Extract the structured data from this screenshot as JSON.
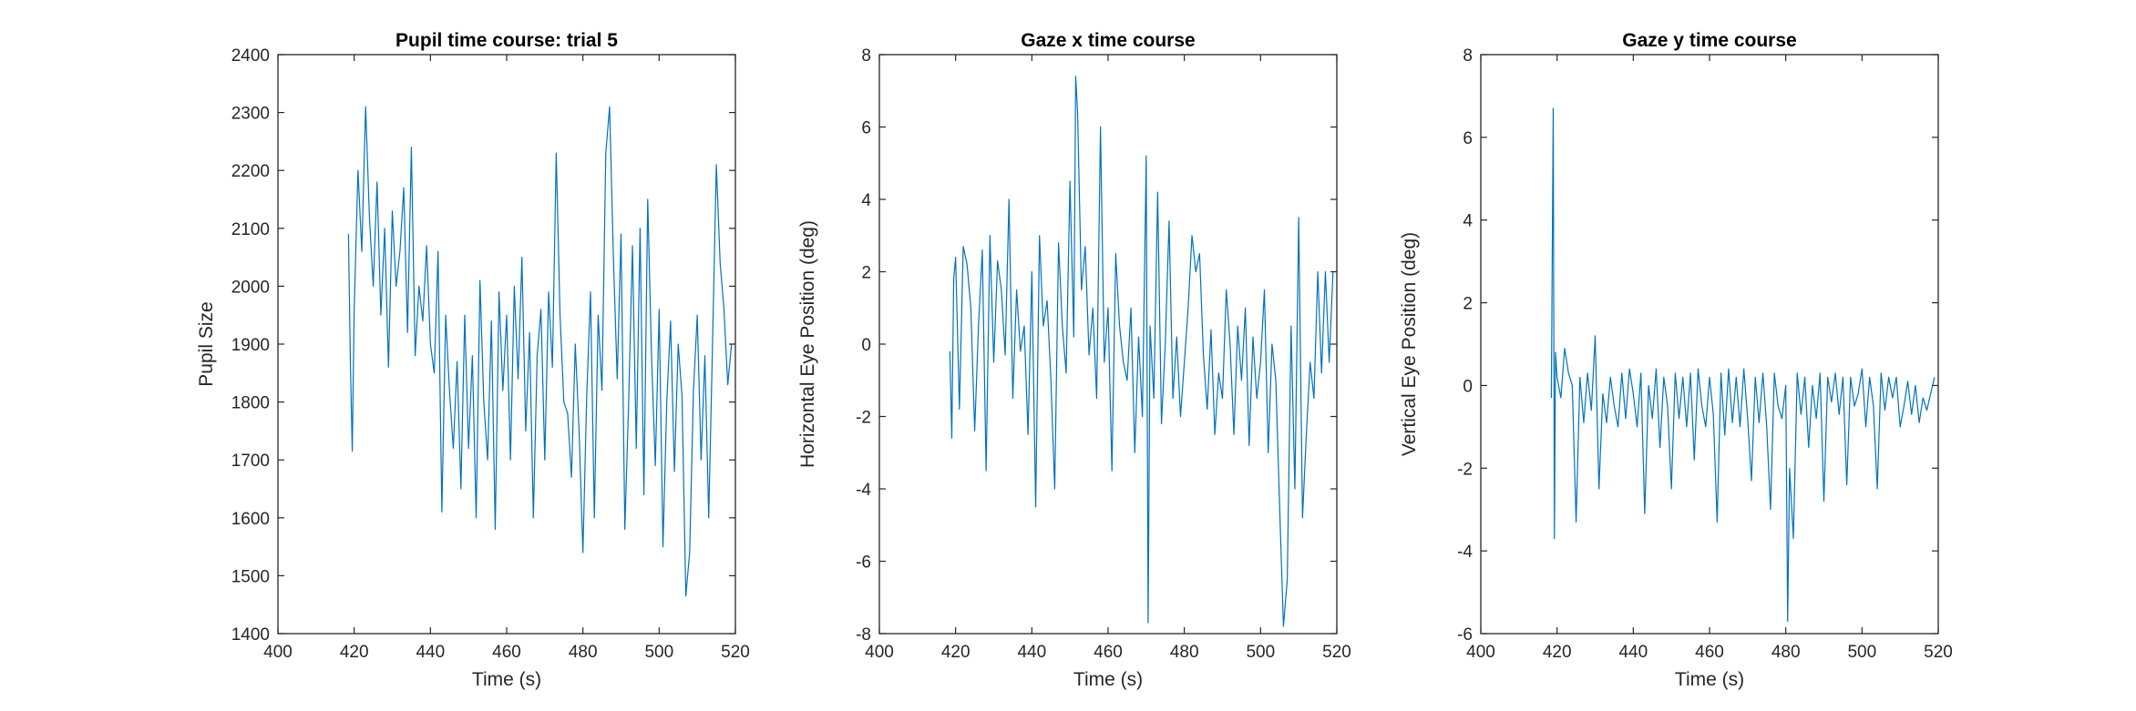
{
  "chart_data": [
    {
      "type": "line",
      "title": "Pupil time course: trial 5",
      "xlabel": "Time (s)",
      "ylabel": "Pupil Size",
      "xlim": [
        400,
        520
      ],
      "ylim": [
        1400,
        2400
      ],
      "xticks": [
        "400",
        "420",
        "440",
        "460",
        "480",
        "500",
        "520"
      ],
      "yticks": [
        "1400",
        "1500",
        "1600",
        "1700",
        "1800",
        "1900",
        "2000",
        "2100",
        "2200",
        "2300",
        "2400"
      ],
      "color": "#0072BD",
      "series": [
        {
          "x": [
            418.5,
            419,
            419.5,
            420,
            421,
            422,
            423,
            424,
            425,
            426,
            427,
            428,
            429,
            430,
            431,
            432,
            433,
            434,
            435,
            436,
            437,
            438,
            439,
            440,
            441,
            442,
            443,
            444,
            445,
            446,
            447,
            448,
            449,
            450,
            451,
            452,
            453,
            454,
            455,
            456,
            457,
            458,
            459,
            460,
            461,
            462,
            463,
            464,
            465,
            466,
            467,
            468,
            469,
            470,
            471,
            472,
            473,
            474,
            475,
            476,
            477,
            478,
            479,
            480,
            481,
            482,
            483,
            484,
            485,
            486,
            487,
            488,
            489,
            490,
            491,
            492,
            493,
            494,
            495,
            496,
            497,
            498,
            499,
            500,
            501,
            502,
            503,
            504,
            505,
            506,
            507,
            508,
            509,
            510,
            511,
            512,
            513,
            514,
            515,
            516,
            517,
            518,
            519
          ],
          "y": [
            2090,
            1870,
            1715,
            1960,
            2200,
            2060,
            2310,
            2120,
            2000,
            2180,
            1950,
            2100,
            1860,
            2130,
            2000,
            2060,
            2170,
            1920,
            2240,
            1880,
            2000,
            1940,
            2070,
            1900,
            1850,
            2060,
            1610,
            1950,
            1820,
            1720,
            1870,
            1650,
            1950,
            1720,
            1880,
            1600,
            2010,
            1800,
            1700,
            1940,
            1580,
            1990,
            1820,
            1950,
            1700,
            2000,
            1840,
            2050,
            1750,
            1920,
            1600,
            1880,
            1960,
            1700,
            1990,
            1860,
            2230,
            1950,
            1800,
            1780,
            1670,
            1900,
            1750,
            1540,
            1810,
            1990,
            1600,
            1950,
            1820,
            2230,
            2310,
            2050,
            1840,
            2090,
            1580,
            1800,
            2070,
            1720,
            2100,
            1640,
            2150,
            1880,
            1690,
            1960,
            1550,
            1800,
            1940,
            1680,
            1900,
            1810,
            1465,
            1540,
            1820,
            1950,
            1700,
            1880,
            1600,
            1900,
            2210,
            2040,
            1960,
            1830,
            1900
          ]
        }
      ]
    },
    {
      "type": "line",
      "title": "Gaze x time course",
      "xlabel": "Time (s)",
      "ylabel": "Horizontal Eye Position (deg)",
      "xlim": [
        400,
        520
      ],
      "ylim": [
        -8,
        8
      ],
      "xticks": [
        "400",
        "420",
        "440",
        "460",
        "480",
        "500",
        "520"
      ],
      "yticks": [
        "-8",
        "-6",
        "-4",
        "-2",
        "0",
        "2",
        "4",
        "6",
        "8"
      ],
      "color": "#0072BD",
      "series": [
        {
          "x": [
            418.5,
            419,
            419.5,
            420,
            421,
            422,
            423,
            424,
            425,
            426,
            427,
            428,
            429,
            430,
            431,
            432,
            433,
            434,
            435,
            436,
            437,
            438,
            439,
            440,
            441,
            442,
            443,
            444,
            445,
            446,
            447,
            448,
            449,
            450,
            451,
            451.5,
            452,
            453,
            454,
            455,
            456,
            457,
            458,
            459,
            460,
            461,
            462,
            463,
            464,
            465,
            466,
            467,
            468,
            469,
            470,
            470.5,
            471,
            472,
            473,
            474,
            475,
            476,
            477,
            478,
            479,
            480,
            481,
            482,
            483,
            484,
            485,
            486,
            487,
            488,
            489,
            490,
            491,
            492,
            493,
            494,
            495,
            496,
            497,
            498,
            499,
            500,
            501,
            502,
            503,
            504,
            505,
            506,
            507,
            508,
            509,
            510,
            511,
            512,
            513,
            514,
            515,
            516,
            517,
            518,
            519
          ],
          "y": [
            -0.2,
            -2.6,
            1.8,
            2.4,
            -1.8,
            2.7,
            2.2,
            1.0,
            -2.4,
            0.5,
            2.6,
            -3.5,
            3.0,
            -0.5,
            2.3,
            1.5,
            -0.3,
            4.0,
            -1.5,
            1.5,
            -0.2,
            0.5,
            -2.5,
            2.0,
            -4.5,
            3.0,
            0.5,
            1.2,
            -1.0,
            -4.0,
            2.8,
            0.5,
            -0.8,
            4.5,
            0.2,
            7.4,
            6.4,
            1.5,
            2.7,
            -0.3,
            1.0,
            -1.5,
            6.0,
            -0.5,
            1.0,
            -3.5,
            2.5,
            0.5,
            -0.5,
            -1.0,
            1.0,
            -3.0,
            0.2,
            -2.0,
            5.2,
            -7.7,
            0.5,
            -1.5,
            4.2,
            -2.2,
            0.0,
            3.4,
            -1.5,
            0.2,
            -2.0,
            -0.5,
            1.0,
            3.0,
            2.0,
            2.5,
            -0.3,
            -1.8,
            0.4,
            -2.5,
            -0.8,
            -1.5,
            1.5,
            0.0,
            -2.5,
            0.5,
            -1.0,
            1.0,
            -2.8,
            0.2,
            -1.5,
            -0.5,
            1.5,
            -3.0,
            0.0,
            -1.0,
            -4.5,
            -7.8,
            -6.5,
            0.5,
            -4.0,
            3.5,
            -4.8,
            -2.5,
            -0.5,
            -1.5,
            2.0,
            -0.8,
            2.0,
            -0.5,
            2.0
          ]
        }
      ]
    },
    {
      "type": "line",
      "title": "Gaze y time course",
      "xlabel": "Time (s)",
      "ylabel": "Vertical Eye Position (deg)",
      "xlim": [
        400,
        520
      ],
      "ylim": [
        -6,
        8
      ],
      "xticks": [
        "400",
        "420",
        "440",
        "460",
        "480",
        "500",
        "520"
      ],
      "yticks": [
        "-6",
        "-4",
        "-2",
        "0",
        "2",
        "4",
        "6",
        "8"
      ],
      "color": "#0072BD",
      "series": [
        {
          "x": [
            418.5,
            419,
            419.3,
            419.6,
            420,
            421,
            422,
            423,
            424,
            425,
            426,
            427,
            428,
            429,
            430,
            431,
            432,
            433,
            434,
            435,
            436,
            437,
            438,
            439,
            440,
            441,
            442,
            443,
            444,
            445,
            446,
            447,
            448,
            449,
            450,
            451,
            452,
            453,
            454,
            455,
            456,
            457,
            458,
            459,
            460,
            461,
            462,
            463,
            464,
            465,
            466,
            467,
            468,
            469,
            470,
            471,
            472,
            473,
            474,
            475,
            476,
            477,
            478,
            479,
            480,
            480.5,
            481,
            482,
            483,
            484,
            485,
            486,
            487,
            488,
            489,
            490,
            491,
            492,
            493,
            494,
            495,
            496,
            497,
            498,
            499,
            500,
            501,
            502,
            503,
            504,
            505,
            506,
            507,
            508,
            509,
            510,
            511,
            512,
            513,
            514,
            515,
            516,
            517,
            518,
            519
          ],
          "y": [
            -0.3,
            6.7,
            -3.7,
            0.8,
            0.2,
            -0.3,
            0.9,
            0.3,
            0.0,
            -3.3,
            0.2,
            -0.9,
            0.3,
            -0.6,
            1.2,
            -2.5,
            -0.2,
            -0.9,
            0.2,
            -0.5,
            -1.0,
            0.3,
            -0.8,
            0.4,
            -0.2,
            -1.0,
            0.3,
            -3.1,
            0.0,
            -0.8,
            0.4,
            -1.5,
            0.2,
            -0.5,
            -2.5,
            0.3,
            -0.8,
            0.2,
            -1.0,
            0.3,
            -1.8,
            0.4,
            -0.5,
            -1.0,
            0.2,
            -0.7,
            -3.3,
            0.3,
            -1.2,
            0.4,
            -0.9,
            0.2,
            -1.0,
            0.4,
            -0.8,
            -2.3,
            0.2,
            -0.9,
            0.3,
            -1.0,
            -3.0,
            0.3,
            -0.5,
            -0.8,
            0.0,
            -5.7,
            -2.0,
            -3.7,
            0.3,
            -0.7,
            0.2,
            -1.5,
            0.0,
            -0.8,
            0.3,
            -2.8,
            0.2,
            -0.4,
            0.3,
            -0.7,
            0.2,
            -2.4,
            0.2,
            -0.5,
            -0.2,
            0.4,
            -1.0,
            0.2,
            -0.5,
            -2.5,
            0.3,
            -0.6,
            0.2,
            -0.3,
            0.2,
            -1.0,
            -0.5,
            0.1,
            -0.7,
            0.0,
            -0.9,
            -0.3,
            -0.6,
            -0.2,
            0.2
          ]
        }
      ]
    }
  ]
}
